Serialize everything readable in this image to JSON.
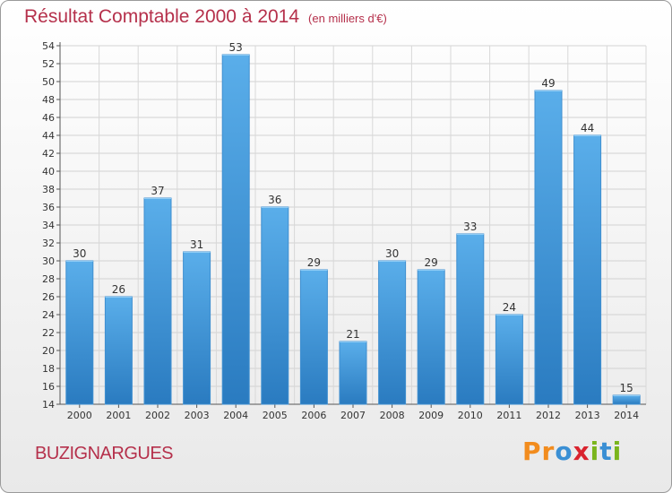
{
  "title": "Résultat Comptable 2000 à 2014",
  "subtitle": "(en milliers d'€)",
  "commune": "BUZIGNARGUES",
  "logo": {
    "letters": [
      "P",
      "r",
      "o",
      "x",
      "i",
      "t",
      "i"
    ],
    "colors": [
      "#f28c1e",
      "#f28c1e",
      "#3a8fd4",
      "#d9232e",
      "#7ab51d",
      "#3a8fd4",
      "#7ab51d"
    ]
  },
  "chart_data": {
    "type": "bar",
    "categories": [
      "2000",
      "2001",
      "2002",
      "2003",
      "2004",
      "2005",
      "2006",
      "2007",
      "2008",
      "2009",
      "2010",
      "2011",
      "2012",
      "2013",
      "2014"
    ],
    "values": [
      30,
      26,
      37,
      31,
      53,
      36,
      29,
      21,
      30,
      29,
      33,
      24,
      49,
      44,
      15
    ],
    "ylim": [
      14,
      54
    ],
    "yticks": [
      14,
      16,
      18,
      20,
      22,
      24,
      26,
      28,
      30,
      32,
      34,
      36,
      38,
      40,
      42,
      44,
      46,
      48,
      50,
      52,
      54
    ],
    "grid": true,
    "bar_color": "#4a9fe0",
    "bar_color_dark": "#2a7bc0"
  }
}
